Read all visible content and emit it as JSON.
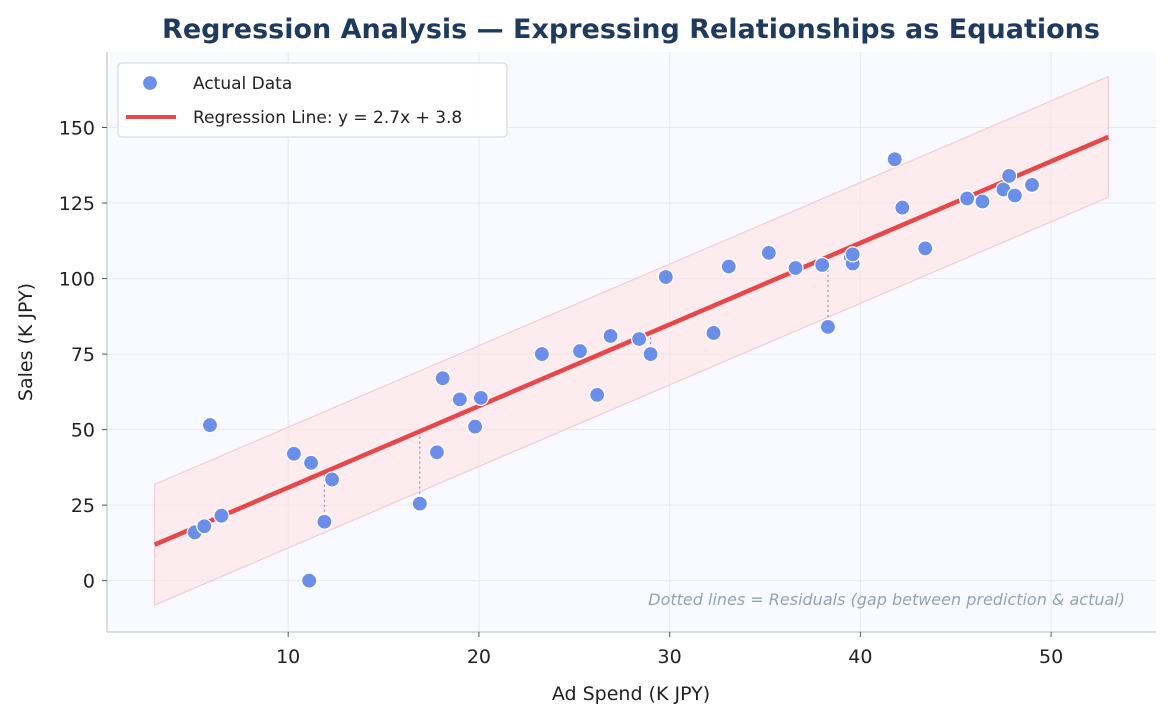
{
  "chart_data": {
    "type": "scatter",
    "title": "Regression Analysis — Expressing Relationships as Equations",
    "xlabel": "Ad Spend (K JPY)",
    "ylabel": "Sales (K JPY)",
    "xlim": [
      0.5,
      55.5
    ],
    "ylim": [
      -17,
      175
    ],
    "xticks": [
      10,
      20,
      30,
      40,
      50
    ],
    "yticks": [
      0,
      25,
      50,
      75,
      100,
      125,
      150
    ],
    "grid": true,
    "legend_position": "top-left",
    "series": [
      {
        "name": "Actual Data",
        "type": "scatter",
        "color": "#6b8fe8",
        "points": [
          [
            5.1,
            16
          ],
          [
            5.6,
            18
          ],
          [
            5.9,
            51.5
          ],
          [
            6.5,
            21.5
          ],
          [
            10.3,
            42
          ],
          [
            11.1,
            0
          ],
          [
            11.2,
            39
          ],
          [
            11.9,
            19.5
          ],
          [
            12.3,
            33.5
          ],
          [
            16.9,
            25.5
          ],
          [
            17.8,
            42.5
          ],
          [
            18.1,
            67
          ],
          [
            19.0,
            60
          ],
          [
            19.8,
            51
          ],
          [
            20.1,
            60.5
          ],
          [
            23.3,
            75
          ],
          [
            25.3,
            76
          ],
          [
            26.2,
            61.5
          ],
          [
            26.9,
            81
          ],
          [
            28.4,
            80
          ],
          [
            29.0,
            75
          ],
          [
            29.8,
            100.5
          ],
          [
            32.3,
            82
          ],
          [
            33.1,
            104
          ],
          [
            35.2,
            108.5
          ],
          [
            36.6,
            103.5
          ],
          [
            38.0,
            104.5
          ],
          [
            38.3,
            84
          ],
          [
            39.5,
            107
          ],
          [
            39.6,
            105
          ],
          [
            39.6,
            108
          ],
          [
            41.8,
            139.5
          ],
          [
            42.2,
            123.5
          ],
          [
            43.4,
            110
          ],
          [
            45.6,
            126.5
          ],
          [
            46.4,
            125.5
          ],
          [
            47.5,
            129.5
          ],
          [
            47.8,
            134
          ],
          [
            48.1,
            127.5
          ],
          [
            49.0,
            131
          ]
        ]
      },
      {
        "name": "Regression Line: y = 2.7x + 3.8",
        "type": "line",
        "color": "#e8474a",
        "slope": 2.7,
        "intercept": 3.8,
        "x_range": [
          3,
          53
        ]
      }
    ],
    "band": {
      "color": "#fde3e6",
      "half_width": 20
    },
    "residual_points": [
      [
        11.9,
        19.5
      ],
      [
        16.9,
        25.5
      ],
      [
        29.0,
        75
      ],
      [
        38.3,
        84
      ]
    ],
    "annotation": "Dotted lines = Residuals (gap between prediction & actual)"
  }
}
